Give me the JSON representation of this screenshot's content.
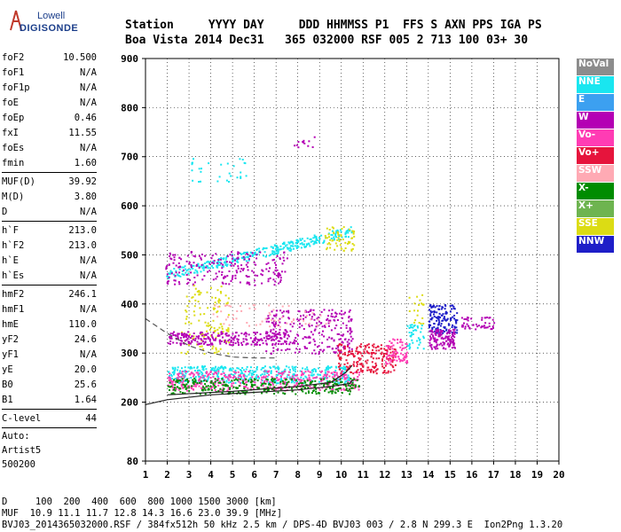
{
  "logo": {
    "brand_top": "Lowell",
    "brand_bottom": "DIGISONDE"
  },
  "header": {
    "columns": [
      "Station",
      "YYYY",
      "DAY",
      "DDD",
      "HHMMSS",
      "P1",
      "FFS",
      "S",
      "AXN",
      "PPS",
      "IGA",
      "PS"
    ],
    "values": [
      "Boa Vista",
      "2014",
      "Dec31",
      "365",
      "032000",
      "RSF",
      "005",
      "2",
      "713",
      "100",
      "03+",
      "30"
    ]
  },
  "params": {
    "group1": [
      {
        "label": "foF2",
        "value": "10.500"
      },
      {
        "label": "foF1",
        "value": "N/A"
      },
      {
        "label": "foF1p",
        "value": "N/A"
      },
      {
        "label": "foE",
        "value": "N/A"
      },
      {
        "label": "foEp",
        "value": "0.46"
      },
      {
        "label": "fxI",
        "value": "11.55"
      },
      {
        "label": "foEs",
        "value": "N/A"
      },
      {
        "label": "fmin",
        "value": "1.60"
      }
    ],
    "group2": [
      {
        "label": "MUF(D)",
        "value": "39.92"
      },
      {
        "label": "M(D)",
        "value": "3.80"
      },
      {
        "label": "D",
        "value": "N/A"
      }
    ],
    "group3": [
      {
        "label": "h`F",
        "value": "213.0"
      },
      {
        "label": "h`F2",
        "value": "213.0"
      },
      {
        "label": "h`E",
        "value": "N/A"
      },
      {
        "label": "h`Es",
        "value": "N/A"
      }
    ],
    "group4": [
      {
        "label": "hmF2",
        "value": "246.1"
      },
      {
        "label": "hmF1",
        "value": "N/A"
      },
      {
        "label": "hmE",
        "value": "110.0"
      },
      {
        "label": "yF2",
        "value": "24.6"
      },
      {
        "label": "yF1",
        "value": "N/A"
      },
      {
        "label": "yE",
        "value": "20.0"
      },
      {
        "label": "B0",
        "value": "25.6"
      },
      {
        "label": "B1",
        "value": "1.64"
      }
    ],
    "group5": [
      {
        "label": "C-level",
        "value": "44"
      }
    ],
    "auto": [
      "Auto:",
      "Artist5",
      "500200"
    ]
  },
  "legend": [
    {
      "label": "NoVal",
      "color": "#8c8c8c"
    },
    {
      "label": "NNE",
      "color": "#19e6f0"
    },
    {
      "label": "E",
      "color": "#3ca0f0"
    },
    {
      "label": "W",
      "color": "#b400b4"
    },
    {
      "label": "Vo-",
      "color": "#ff3cb4"
    },
    {
      "label": "Vo+",
      "color": "#e6143c"
    },
    {
      "label": "SSW",
      "color": "#ffaab4"
    },
    {
      "label": "X-",
      "color": "#008c00"
    },
    {
      "label": "X+",
      "color": "#6eb450"
    },
    {
      "label": "SSE",
      "color": "#dcdc14"
    },
    {
      "label": "NNW",
      "color": "#1e1ec8"
    }
  ],
  "chart_data": {
    "type": "scatter",
    "x_label": "",
    "y_label": "",
    "xlim": [
      1,
      20
    ],
    "ylim": [
      80,
      900
    ],
    "x_ticks": [
      1,
      2,
      3,
      4,
      5,
      6,
      7,
      8,
      9,
      10,
      11,
      12,
      13,
      14,
      15,
      16,
      17,
      18,
      19,
      20
    ],
    "y_ticks": [
      80,
      200,
      300,
      400,
      500,
      600,
      700,
      800,
      900
    ],
    "grid": true,
    "clusters": [
      {
        "series": "NNE",
        "x_range": [
          1.9,
          10.5
        ],
        "y_start": [
          450,
          470
        ],
        "y_end": [
          540,
          560
        ],
        "count": 320
      },
      {
        "series": "W",
        "x_range": [
          1.9,
          7.5
        ],
        "y_range": [
          440,
          510
        ],
        "count": 220
      },
      {
        "series": "SSE",
        "x_range": [
          9.2,
          10.6
        ],
        "y_range": [
          510,
          560
        ],
        "count": 60
      },
      {
        "series": "NNE",
        "x_range": [
          3.0,
          5.8
        ],
        "y_range": [
          650,
          700
        ],
        "count": 30
      },
      {
        "series": "W",
        "x_range": [
          7.8,
          8.8
        ],
        "y_range": [
          720,
          745
        ],
        "count": 12
      },
      {
        "series": "SSE",
        "x_range": [
          2.6,
          4.8
        ],
        "y_range": [
          300,
          440
        ],
        "count": 120
      },
      {
        "series": "W",
        "x_range": [
          2.0,
          7.5
        ],
        "y_range": [
          318,
          345
        ],
        "count": 260
      },
      {
        "series": "W",
        "x_range": [
          6.5,
          10.5
        ],
        "y_range": [
          300,
          390
        ],
        "count": 260
      },
      {
        "series": "NNE",
        "x_range": [
          2.0,
          10.5
        ],
        "y_range": [
          240,
          275
        ],
        "count": 420
      },
      {
        "series": "Vo-",
        "x_range": [
          2.0,
          10.8
        ],
        "y_range": [
          225,
          265
        ],
        "count": 420
      },
      {
        "series": "X-",
        "x_range": [
          2.0,
          10.8
        ],
        "y_range": [
          218,
          250
        ],
        "count": 320
      },
      {
        "series": "Vo+",
        "x_range": [
          9.8,
          12.5
        ],
        "y_range": [
          260,
          320
        ],
        "count": 200
      },
      {
        "series": "Vo-",
        "x_range": [
          12.0,
          13.0
        ],
        "y_range": [
          280,
          330
        ],
        "count": 80
      },
      {
        "series": "NNW",
        "x_range": [
          14.0,
          15.3
        ],
        "y_range": [
          340,
          400
        ],
        "count": 140
      },
      {
        "series": "W",
        "x_range": [
          14.0,
          15.2
        ],
        "y_range": [
          310,
          350
        ],
        "count": 120
      },
      {
        "series": "W",
        "x_range": [
          15.5,
          17.0
        ],
        "y_range": [
          350,
          375
        ],
        "count": 50
      },
      {
        "series": "NNE",
        "x_range": [
          13.0,
          13.8
        ],
        "y_range": [
          310,
          360
        ],
        "count": 40
      },
      {
        "series": "SSE",
        "x_range": [
          13.0,
          13.8
        ],
        "y_range": [
          360,
          420
        ],
        "count": 20
      },
      {
        "series": "SSW",
        "x_range": [
          4.0,
          9.5
        ],
        "y_range": [
          355,
          400
        ],
        "count": 60
      }
    ],
    "profile_lines": [
      {
        "name": "lower",
        "style": "solid",
        "points": [
          [
            1.0,
            195
          ],
          [
            2.0,
            205
          ],
          [
            4.0,
            215
          ],
          [
            6.0,
            220
          ],
          [
            8.0,
            225
          ],
          [
            9.5,
            232
          ],
          [
            10.4,
            238
          ],
          [
            10.5,
            245
          ]
        ]
      },
      {
        "name": "upper",
        "style": "solid",
        "points": [
          [
            2.0,
            215
          ],
          [
            5.0,
            222
          ],
          [
            8.0,
            232
          ],
          [
            9.5,
            240
          ],
          [
            10.2,
            260
          ],
          [
            10.5,
            275
          ]
        ]
      },
      {
        "name": "dashed",
        "style": "dashed",
        "points": [
          [
            1.0,
            370
          ],
          [
            2.0,
            340
          ],
          [
            3.0,
            315
          ],
          [
            4.0,
            300
          ],
          [
            5.0,
            292
          ],
          [
            6.0,
            290
          ],
          [
            7.0,
            290
          ]
        ]
      }
    ]
  },
  "bottom": {
    "line1": "D     100  200  400  600  800 1000 1500 3000 [km]",
    "line2": "MUF  10.9 11.1 11.7 12.8 14.3 16.6 23.0 39.9 [MHz]",
    "line3": "BVJ03_2014365032000.RSF / 384fx512h 50 kHz 2.5 km / DPS-4D BVJ03 003 / 2.8 N 299.3 E  Ion2Png 1.3.20"
  }
}
